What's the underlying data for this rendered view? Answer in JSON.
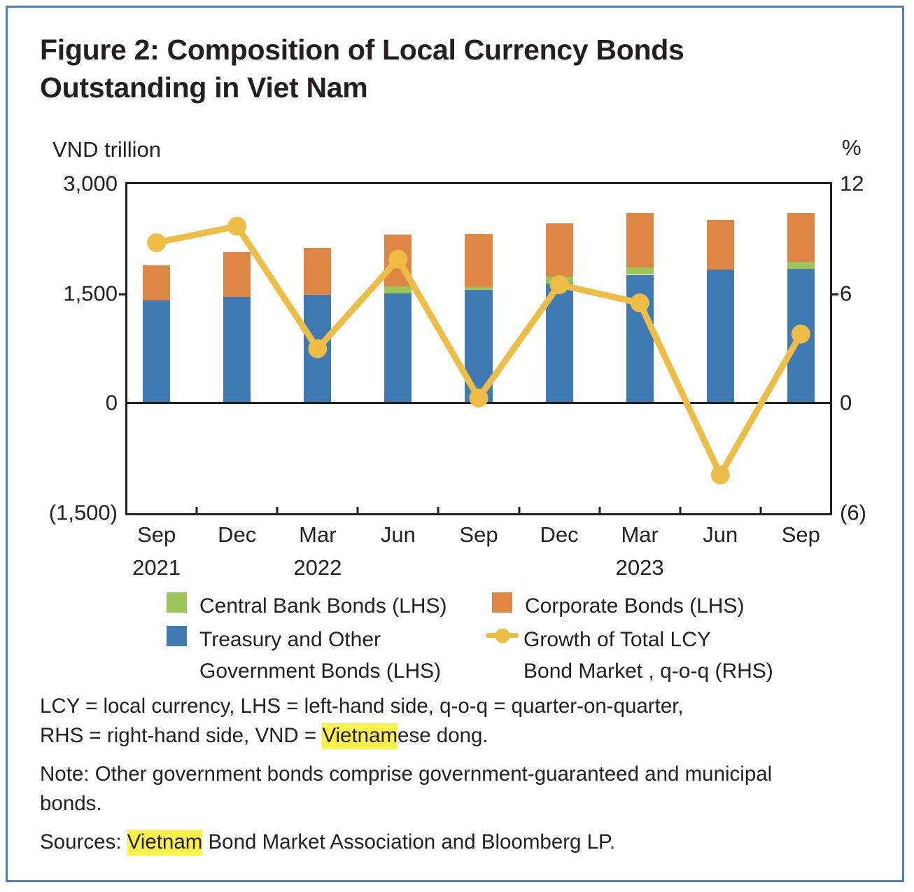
{
  "title": "Figure 2: Composition of Local Currency Bonds Outstanding in Viet Nam",
  "colors": {
    "treasury": "#3f7ab3",
    "central_bank": "#9cc559",
    "corporate": "#de8643",
    "growth_line": "#eebd45",
    "highlight": "#faf14a",
    "figure_border": "#4d80b2",
    "axis": "#231f20"
  },
  "chart_data": {
    "type": "bar",
    "subtype": "stacked bars with overlaid line, dual axis",
    "categories": [
      "Sep 2021",
      "Dec 2021",
      "Mar 2022",
      "Jun 2022",
      "Sep 2022",
      "Dec 2022",
      "Mar 2023",
      "Jun 2023",
      "Sep 2023"
    ],
    "x_labels": [
      {
        "month": "Sep",
        "year": "2021"
      },
      {
        "month": "Dec",
        "year": ""
      },
      {
        "month": "Mar",
        "year": "2022"
      },
      {
        "month": "Jun",
        "year": ""
      },
      {
        "month": "Sep",
        "year": ""
      },
      {
        "month": "Dec",
        "year": ""
      },
      {
        "month": "Mar",
        "year": "2023"
      },
      {
        "month": "Jun",
        "year": ""
      },
      {
        "month": "Sep",
        "year": ""
      }
    ],
    "series": [
      {
        "key": "treasury",
        "name": "Treasury and Other Government Bonds (LHS)",
        "type": "bar",
        "color": "#3f7ab3",
        "values": [
          1415,
          1455,
          1490,
          1510,
          1550,
          1645,
          1760,
          1835,
          1845
        ]
      },
      {
        "key": "central_bank",
        "name": "Central Bank Bonds (LHS)",
        "type": "bar",
        "color": "#9cc559",
        "values": [
          0,
          0,
          0,
          95,
          40,
          95,
          105,
          0,
          95
        ]
      },
      {
        "key": "corporate",
        "name": "Corporate Bonds (LHS)",
        "type": "bar",
        "color": "#de8643",
        "values": [
          470,
          615,
          640,
          705,
          735,
          725,
          745,
          680,
          670
        ]
      },
      {
        "key": "growth",
        "name": "Growth of Total LCY Bond Market , q-o-q (RHS)",
        "type": "line",
        "color": "#eebd45",
        "values": [
          8.8,
          9.7,
          3.0,
          7.9,
          0.3,
          6.5,
          5.5,
          -3.9,
          3.8
        ]
      }
    ],
    "left_axis": {
      "label": "VND trillion",
      "min": -1500,
      "max": 3000,
      "ticks": [
        "3,000",
        "1,500",
        "0",
        "(1,500)"
      ]
    },
    "right_axis": {
      "label": "%",
      "min": -6,
      "max": 12,
      "ticks": [
        "12",
        "6",
        "0",
        "(6)"
      ]
    },
    "grid": false,
    "legend_position": "below"
  },
  "legend": {
    "central_bank": {
      "label": "Central Bank Bonds (LHS)"
    },
    "treasury": {
      "line1": "Treasury and Other",
      "line2": "Government Bonds (LHS)"
    },
    "corporate": {
      "label": "Corporate Bonds (LHS)"
    },
    "growth": {
      "line1": "Growth of Total LCY",
      "line2": "Bond Market , q-o-q (RHS)"
    }
  },
  "footnotes": {
    "abbrev": {
      "line1": "LCY = local currency, LHS = left-hand side, q-o-q = quarter-on-quarter,",
      "line2_parts": [
        {
          "text": "RHS = right-hand side, VND = ",
          "highlight": false
        },
        {
          "text": "Vietnam",
          "highlight": true
        },
        {
          "text": "ese dong.",
          "highlight": false
        }
      ]
    },
    "note": {
      "line1": "Note: Other government bonds comprise government-guaranteed and municipal",
      "line2": "bonds."
    },
    "sources_parts": [
      {
        "text": "Sources: ",
        "highlight": false
      },
      {
        "text": "Vietnam",
        "highlight": true
      },
      {
        "text": " Bond Market Association and Bloomberg LP.",
        "highlight": false
      }
    ]
  }
}
